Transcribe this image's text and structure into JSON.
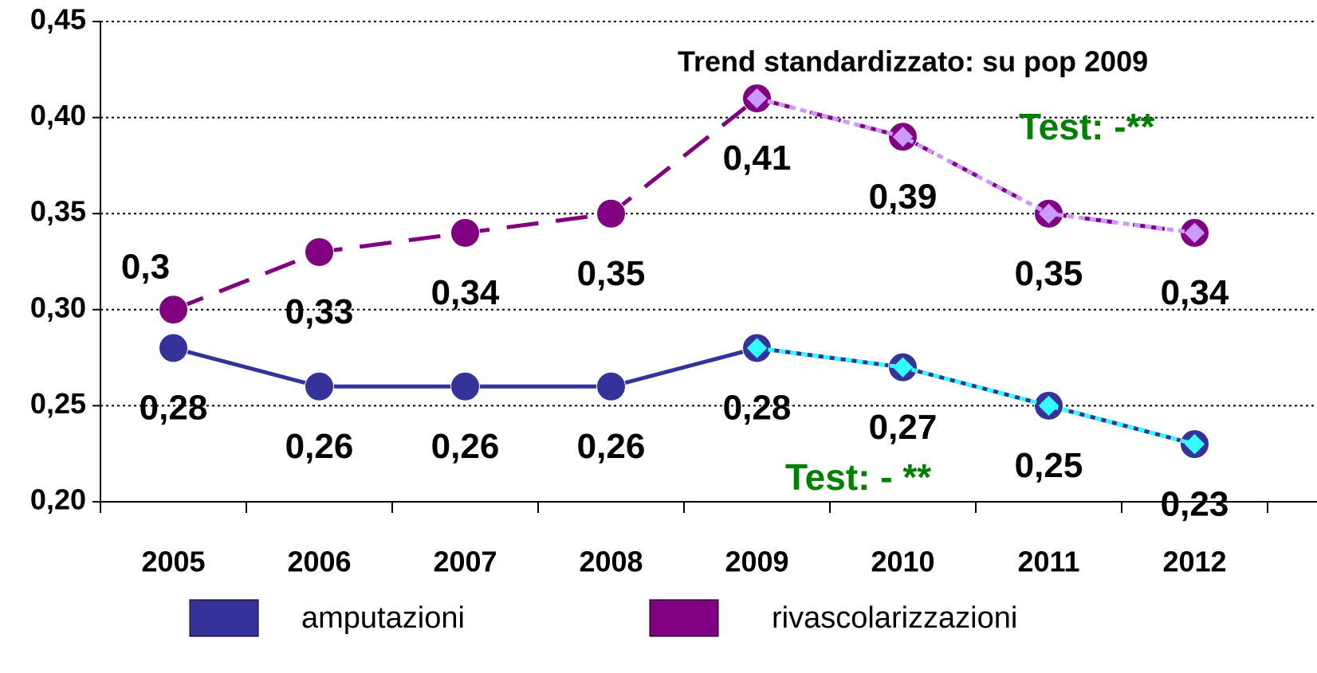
{
  "chart_data": {
    "type": "line",
    "categories": [
      "2005",
      "2006",
      "2007",
      "2008",
      "2009",
      "2010",
      "2011",
      "2012"
    ],
    "series": [
      {
        "name": "amputazioni",
        "color": "#333399",
        "line": "solid",
        "marker": "circle",
        "values": [
          0.28,
          0.26,
          0.26,
          0.26,
          0.28,
          0.27,
          0.25,
          0.23
        ],
        "value_labels": [
          "0,28",
          "0,26",
          "0,26",
          "0,26",
          "0,28",
          "0,27",
          "0,25",
          "0,23"
        ]
      },
      {
        "name": "rivascolarizzazioni",
        "color": "#800080",
        "line": "dashed",
        "marker": "circle",
        "values": [
          0.3,
          0.33,
          0.34,
          0.35,
          0.41,
          0.39,
          0.35,
          0.34
        ],
        "value_labels": [
          "0,3",
          "0,33",
          "0,34",
          "0,35",
          "0,41",
          "0,39",
          "0,35",
          "0,34"
        ]
      },
      {
        "color": "#33ffff",
        "line": "dotted",
        "marker": "diamond",
        "values": [
          null,
          null,
          null,
          null,
          0.28,
          0.27,
          0.25,
          0.23
        ]
      },
      {
        "color": "#cc99ff",
        "line": "dotted",
        "marker": "diamond",
        "values": [
          null,
          null,
          null,
          null,
          0.41,
          0.39,
          0.35,
          0.34
        ]
      }
    ],
    "ylim": [
      0.2,
      0.45
    ],
    "yticks": [
      {
        "value": 0.2,
        "label": "0,20"
      },
      {
        "value": 0.25,
        "label": "0,25"
      },
      {
        "value": 0.3,
        "label": "0,30"
      },
      {
        "value": 0.35,
        "label": "0,35"
      },
      {
        "value": 0.4,
        "label": "0,40"
      },
      {
        "value": 0.45,
        "label": "0,45"
      }
    ],
    "grid": true,
    "legend": "bottom",
    "annotations": [
      {
        "text": "Trend standardizzato: su pop 2009",
        "color": "#000000"
      },
      {
        "text": "Test: -**",
        "color": "#008000"
      },
      {
        "text": "Test: - **",
        "color": "#008000"
      }
    ]
  }
}
